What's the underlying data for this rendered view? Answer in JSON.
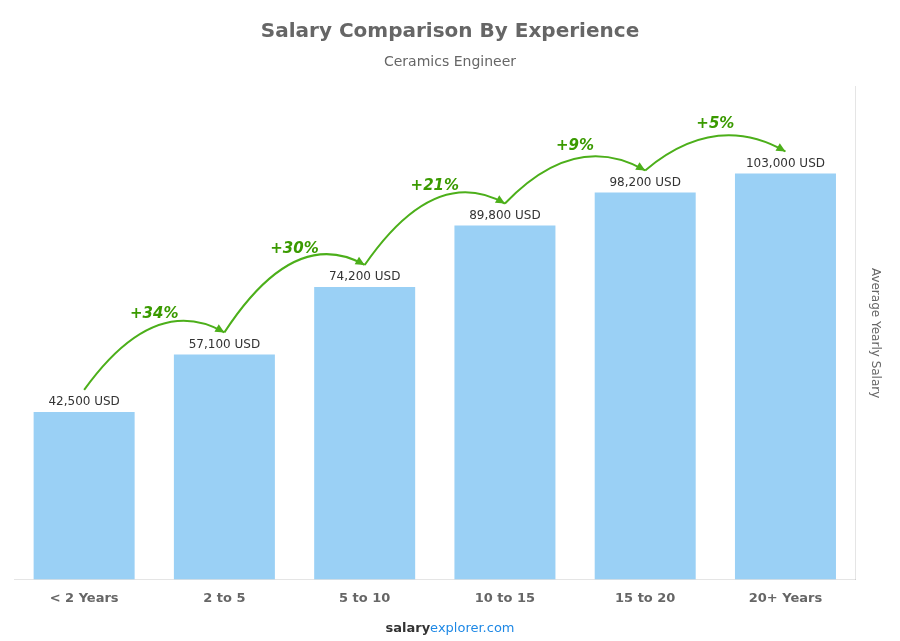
{
  "chart_data": {
    "type": "bar",
    "title": "Salary Comparison By Experience",
    "subtitle": "Ceramics Engineer",
    "categories": [
      "< 2 Years",
      "2 to 5",
      "5 to 10",
      "10 to 15",
      "15 to 20",
      "20+ Years"
    ],
    "values": [
      42500,
      57100,
      74200,
      89800,
      98200,
      103000
    ],
    "value_labels": [
      "42,500 USD",
      "57,100 USD",
      "74,200 USD",
      "89,800 USD",
      "98,200 USD",
      "103,000 USD"
    ],
    "data_labels": true,
    "annotations": [
      "+34%",
      "+30%",
      "+21%",
      "+9%",
      "+5%"
    ],
    "ylabel": "Average Yearly Salary",
    "ylim": [
      0,
      125000
    ],
    "grid": false,
    "tick_labels": "x",
    "footer": [
      "salary",
      "explorer.com"
    ]
  }
}
